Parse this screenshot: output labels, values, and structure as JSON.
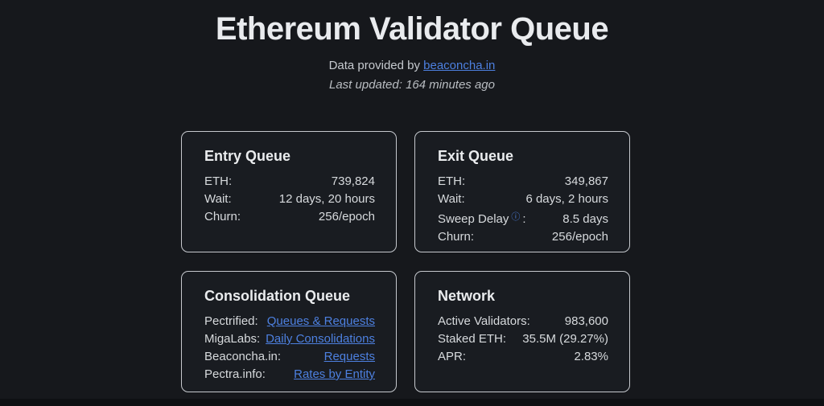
{
  "header": {
    "title": "Ethereum Validator Queue",
    "subtitle_prefix": "Data provided by ",
    "subtitle_link": "beaconcha.in",
    "last_updated": "Last updated: 164 minutes ago"
  },
  "icons": {
    "info": "ⓘ"
  },
  "colors": {
    "page_background": "#16181c",
    "card_background": "#191c21",
    "card_border": "#c6c9ce",
    "text_primary": "#eaecee",
    "text_secondary": "#d7dadd",
    "muted_text": "#b9bdc2",
    "link_blue": "#4d80e0",
    "footer_bar": "#0e1013"
  },
  "cards": [
    {
      "title": "Entry Queue",
      "rows": [
        {
          "label": "ETH:",
          "value": "739,824"
        },
        {
          "label": "Wait:",
          "value": "12 days, 20 hours"
        },
        {
          "label": "Churn:",
          "value": "256/epoch"
        }
      ]
    },
    {
      "title": "Exit Queue",
      "rows": [
        {
          "label": "ETH:",
          "value": "349,867"
        },
        {
          "label": "Wait:",
          "value": "6 days, 2 hours"
        },
        {
          "label": "Sweep Delay",
          "suffix": ":",
          "value": "8.5 days"
        },
        {
          "label": "Churn:",
          "value": "256/epoch"
        }
      ]
    },
    {
      "title": "Consolidation Queue",
      "rows": [
        {
          "label": "Pectrified:",
          "link": "Queues & Requests"
        },
        {
          "label": "MigaLabs:",
          "link": "Daily Consolidations"
        },
        {
          "label": "Beaconcha.in:",
          "link": "Requests"
        },
        {
          "label": "Pectra.info:",
          "link": "Rates by Entity"
        }
      ]
    },
    {
      "title": "Network",
      "rows": [
        {
          "label": "Active Validators:",
          "value": "983,600"
        },
        {
          "label": "Staked ETH:",
          "value": "35.5M (29.27%)"
        },
        {
          "label": "APR:",
          "value": "2.83%"
        }
      ]
    }
  ]
}
